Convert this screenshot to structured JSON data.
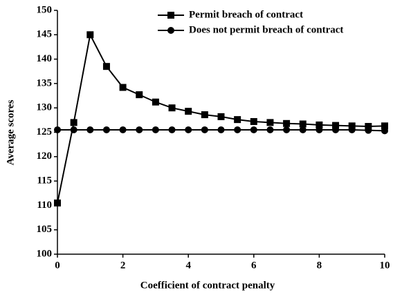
{
  "chart_data": {
    "type": "line",
    "xlabel": "Coefficient of contract penalty",
    "ylabel": "Average scores",
    "x": [
      0,
      0.5,
      1,
      1.5,
      2,
      2.5,
      3,
      3.5,
      4,
      4.5,
      5,
      5.5,
      6,
      6.5,
      7,
      7.5,
      8,
      8.5,
      9,
      9.5,
      10
    ],
    "series": [
      {
        "name": "Permit breach of contract",
        "color": "#000000",
        "marker": "square",
        "values": [
          110.5,
          127,
          145,
          138.5,
          134.2,
          132.7,
          131.2,
          130,
          129.3,
          128.6,
          128.2,
          127.6,
          127.2,
          127,
          126.8,
          126.7,
          126.5,
          126.4,
          126.3,
          126.2,
          126.3
        ]
      },
      {
        "name": "Does not permit breach of contract",
        "color": "#000000",
        "marker": "circle",
        "values": [
          125.5,
          125.5,
          125.5,
          125.5,
          125.5,
          125.5,
          125.5,
          125.5,
          125.5,
          125.5,
          125.5,
          125.5,
          125.5,
          125.5,
          125.5,
          125.5,
          125.5,
          125.5,
          125.5,
          125.4,
          125.3
        ]
      }
    ],
    "xlim": [
      0,
      10
    ],
    "xticks": [
      0,
      2,
      4,
      6,
      8,
      10
    ],
    "ylim": [
      100,
      150
    ],
    "yticks": [
      100,
      105,
      110,
      115,
      120,
      125,
      130,
      135,
      140,
      145,
      150
    ],
    "legend": "upper right"
  }
}
